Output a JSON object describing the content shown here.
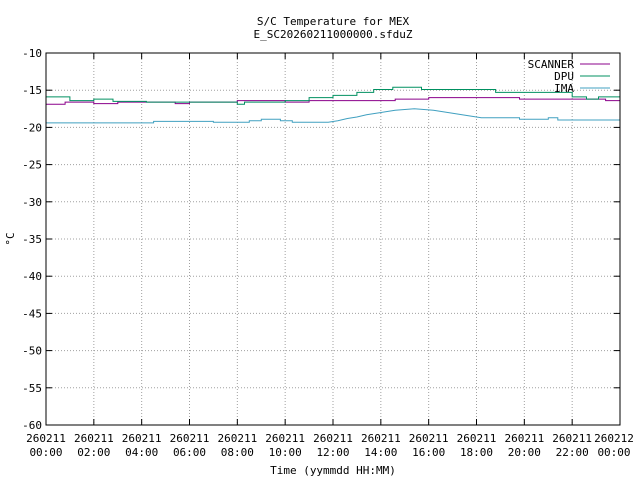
{
  "chart_data": {
    "type": "line",
    "title": "S/C Temperature for MEX",
    "subtitle": "E_SC20260211000000.sfduZ",
    "xlabel": "Time (yymmdd HH:MM)",
    "ylabel": "°C",
    "xlim": [
      0,
      24
    ],
    "ylim": [
      -60,
      -10
    ],
    "yticks": [
      -10,
      -15,
      -20,
      -25,
      -30,
      -35,
      -40,
      -45,
      -50,
      -55,
      -60
    ],
    "xticks": [
      {
        "x": 0,
        "date": "260211",
        "time": "00:00"
      },
      {
        "x": 2,
        "date": "260211",
        "time": "02:00"
      },
      {
        "x": 4,
        "date": "260211",
        "time": "04:00"
      },
      {
        "x": 6,
        "date": "260211",
        "time": "06:00"
      },
      {
        "x": 8,
        "date": "260211",
        "time": "08:00"
      },
      {
        "x": 10,
        "date": "260211",
        "time": "10:00"
      },
      {
        "x": 12,
        "date": "260211",
        "time": "12:00"
      },
      {
        "x": 14,
        "date": "260211",
        "time": "14:00"
      },
      {
        "x": 16,
        "date": "260211",
        "time": "16:00"
      },
      {
        "x": 18,
        "date": "260211",
        "time": "18:00"
      },
      {
        "x": 20,
        "date": "260211",
        "time": "20:00"
      },
      {
        "x": 22,
        "date": "260211",
        "time": "22:00"
      },
      {
        "x": 24,
        "date": "260212",
        "time": "00:00"
      }
    ],
    "grid": true,
    "legend": "top-right",
    "series": [
      {
        "name": "SCANNER",
        "color": "#8b008b",
        "x": [
          0,
          0.8,
          0.8,
          2,
          2,
          3,
          3,
          5.4,
          5.4,
          6,
          6,
          8,
          8,
          10,
          10,
          11,
          11,
          14.6,
          14.6,
          16,
          16,
          19.8,
          19.8,
          23.4,
          23.4,
          24
        ],
        "y": [
          -16.9,
          -16.9,
          -16.6,
          -16.6,
          -16.8,
          -16.8,
          -16.6,
          -16.6,
          -16.8,
          -16.8,
          -16.6,
          -16.6,
          -16.4,
          -16.4,
          -16.6,
          -16.6,
          -16.4,
          -16.4,
          -16.2,
          -16.2,
          -16,
          -16,
          -16.2,
          -16.2,
          -16.4,
          -16.4
        ]
      },
      {
        "name": "DPU",
        "color": "#009060",
        "x": [
          0,
          1,
          1,
          2,
          2,
          2.8,
          2.8,
          4.2,
          4.2,
          8,
          8,
          8.3,
          8.3,
          10,
          10,
          11,
          11,
          12,
          12,
          13,
          13,
          13.7,
          13.7,
          14.5,
          14.5,
          15.7,
          15.7,
          18.8,
          18.8,
          22,
          22,
          22.6,
          22.6,
          23.1,
          23.1,
          24
        ],
        "y": [
          -15.9,
          -15.9,
          -16.4,
          -16.4,
          -16.2,
          -16.2,
          -16.5,
          -16.5,
          -16.6,
          -16.6,
          -16.9,
          -16.9,
          -16.6,
          -16.6,
          -16.4,
          -16.4,
          -16,
          -16,
          -15.7,
          -15.7,
          -15.3,
          -15.3,
          -14.9,
          -14.9,
          -14.6,
          -14.6,
          -14.9,
          -14.9,
          -15.3,
          -15.3,
          -15.9,
          -15.9,
          -16.2,
          -16.2,
          -15.9,
          -15.9
        ]
      },
      {
        "name": "IMA",
        "color": "#40a0c0",
        "x": [
          0,
          4.5,
          4.5,
          7,
          7,
          8.5,
          8.5,
          9,
          9,
          9.8,
          9.8,
          10.3,
          10.3,
          11.8,
          12.2,
          12.6,
          13,
          13.4,
          13.8,
          14.2,
          14.6,
          15,
          15.4,
          15.8,
          16.2,
          16.6,
          17,
          17.4,
          17.8,
          18.2,
          18.6,
          19.8,
          19.8,
          21,
          21,
          21.4,
          21.4,
          24
        ],
        "y": [
          -19.4,
          -19.4,
          -19.2,
          -19.2,
          -19.3,
          -19.3,
          -19.1,
          -19.1,
          -18.9,
          -18.9,
          -19.1,
          -19.1,
          -19.3,
          -19.3,
          -19.1,
          -18.8,
          -18.6,
          -18.3,
          -18.1,
          -17.9,
          -17.7,
          -17.6,
          -17.5,
          -17.6,
          -17.7,
          -17.9,
          -18.1,
          -18.3,
          -18.5,
          -18.7,
          -18.7,
          -18.7,
          -18.9,
          -18.9,
          -18.7,
          -18.7,
          -19,
          -19
        ]
      }
    ]
  }
}
